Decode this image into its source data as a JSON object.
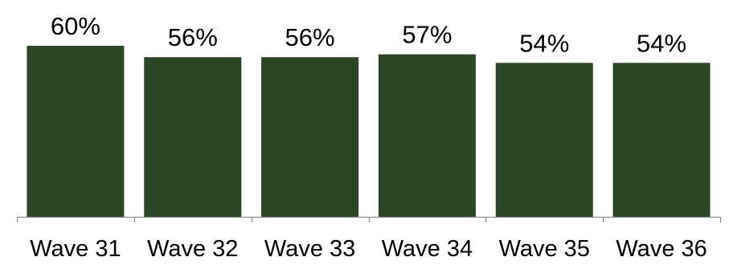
{
  "chart_data": {
    "type": "bar",
    "categories": [
      "Wave 31",
      "Wave 32",
      "Wave 33",
      "Wave 34",
      "Wave 35",
      "Wave 36"
    ],
    "values": [
      60,
      56,
      56,
      57,
      54,
      54
    ],
    "data_labels": [
      "60%",
      "56%",
      "56%",
      "57%",
      "54%",
      "54%"
    ],
    "value_unit": "%",
    "title": "",
    "xlabel": "",
    "ylabel": "",
    "ylim": [
      0,
      60
    ],
    "grid": false,
    "legend": "none",
    "colors": {
      "bar": "#2d4726",
      "axis": "#8c8c8c",
      "text": "#000000"
    }
  }
}
